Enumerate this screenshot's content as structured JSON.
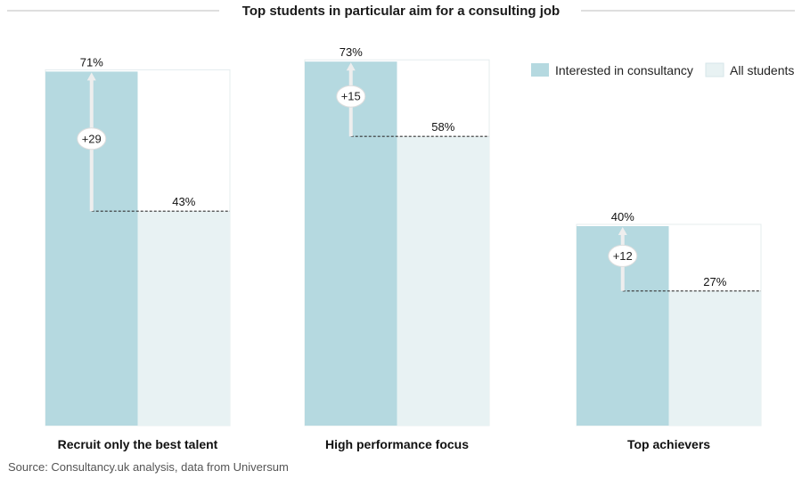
{
  "chart_data": {
    "type": "bar",
    "title": "Top students in particular aim for a consulting job",
    "categories": [
      "Recruit only the best talent",
      "High performance focus",
      "Top achievers"
    ],
    "series": [
      {
        "name": "Interested in consultancy",
        "values": [
          71,
          73,
          40
        ],
        "color": "#b5d9e0"
      },
      {
        "name": "All students",
        "values": [
          43,
          58,
          27
        ],
        "color": "#e8f2f3"
      }
    ],
    "value_labels": [
      [
        "71%",
        "73%",
        "40%"
      ],
      [
        "43%",
        "58%",
        "27%"
      ]
    ],
    "differences": [
      "+29",
      "+15",
      "+12"
    ],
    "ylim": [
      0,
      100
    ],
    "legend_position": "top-right",
    "grid": false
  },
  "source": "Source: Consultancy.uk analysis, data from Universum"
}
